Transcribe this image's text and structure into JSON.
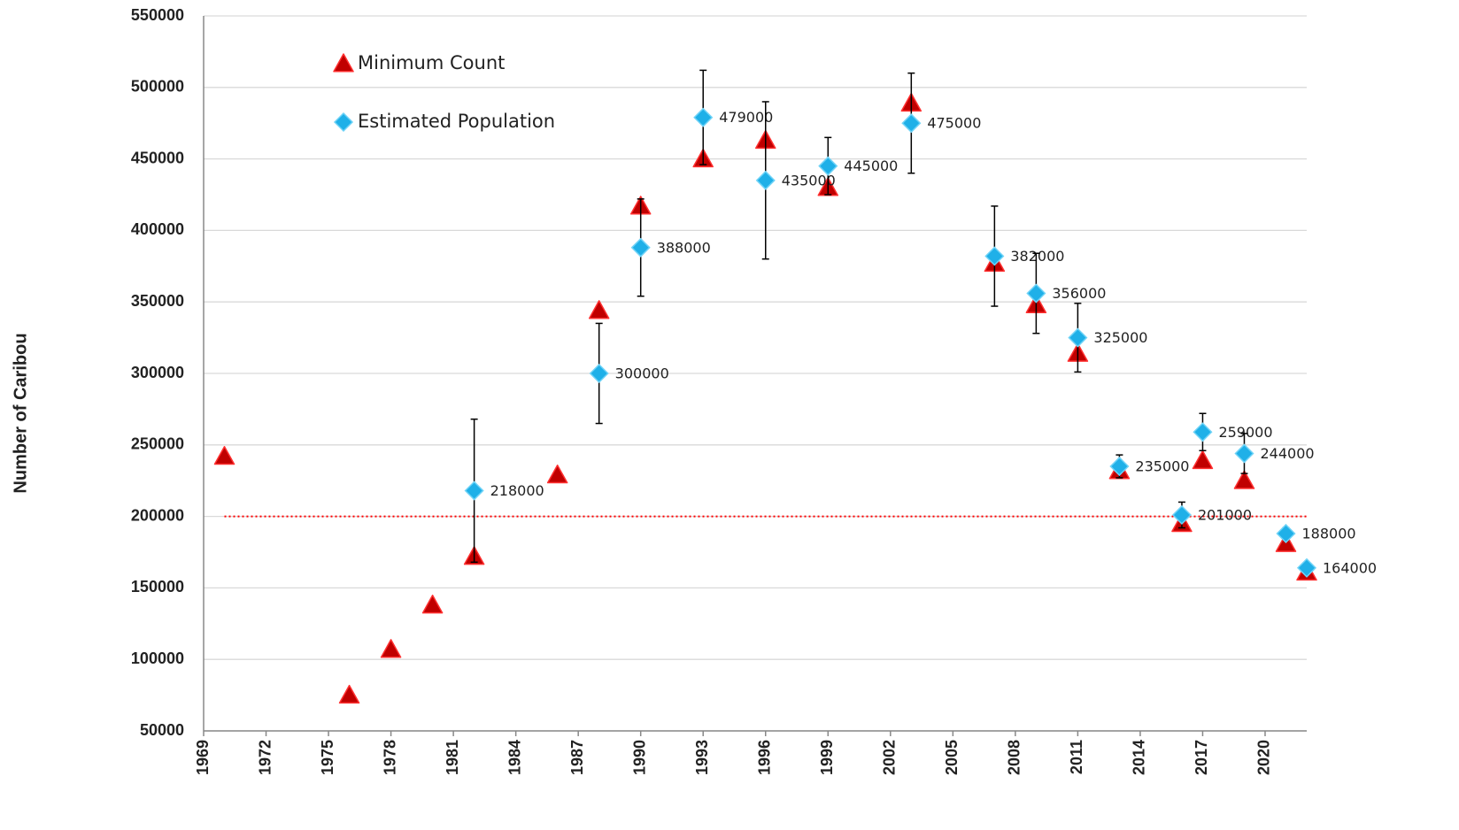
{
  "chart_data": {
    "type": "scatter",
    "y_label": "Number of Caribou",
    "xlim": [
      1969,
      2022
    ],
    "xticks": [
      1969,
      1972,
      1975,
      1978,
      1981,
      1984,
      1987,
      1990,
      1993,
      1996,
      1999,
      2002,
      2005,
      2008,
      2011,
      2014,
      2017,
      2020
    ],
    "ylim": [
      50000,
      550000
    ],
    "yticks": [
      50000,
      100000,
      150000,
      200000,
      250000,
      300000,
      350000,
      400000,
      450000,
      500000,
      550000
    ],
    "grid": true,
    "legend": "upper left",
    "reference_line": {
      "value": 200000,
      "color": "#ff0000"
    },
    "series": [
      {
        "name": "Minimum Count",
        "color": "#c00000",
        "marker": "triangle",
        "x": [
          1970,
          1976,
          1978,
          1980,
          1982,
          1986,
          1988,
          1990,
          1993,
          1996,
          1999,
          2003,
          2007,
          2009,
          2011,
          2013,
          2016,
          2017,
          2019,
          2021,
          2022
        ],
        "values": [
          242000,
          75000,
          107000,
          138000,
          172000,
          229000,
          344000,
          417000,
          450000,
          463000,
          430000,
          489000,
          377000,
          348000,
          314000,
          232000,
          195000,
          239000,
          225000,
          181000,
          161000
        ]
      },
      {
        "name": "Estimated Population",
        "color": "#1fb0e8",
        "marker": "diamond",
        "x": [
          1982,
          1988,
          1990,
          1993,
          1996,
          1999,
          2003,
          2007,
          2009,
          2011,
          2013,
          2016,
          2017,
          2019,
          2021,
          2022
        ],
        "values": [
          218000,
          300000,
          388000,
          479000,
          435000,
          445000,
          475000,
          382000,
          356000,
          325000,
          235000,
          201000,
          259000,
          244000,
          188000,
          164000
        ],
        "errors": [
          50000,
          35000,
          34000,
          33000,
          55000,
          20000,
          35000,
          35000,
          28000,
          24000,
          8000,
          9000,
          13000,
          14000,
          4000,
          3000
        ]
      }
    ]
  }
}
